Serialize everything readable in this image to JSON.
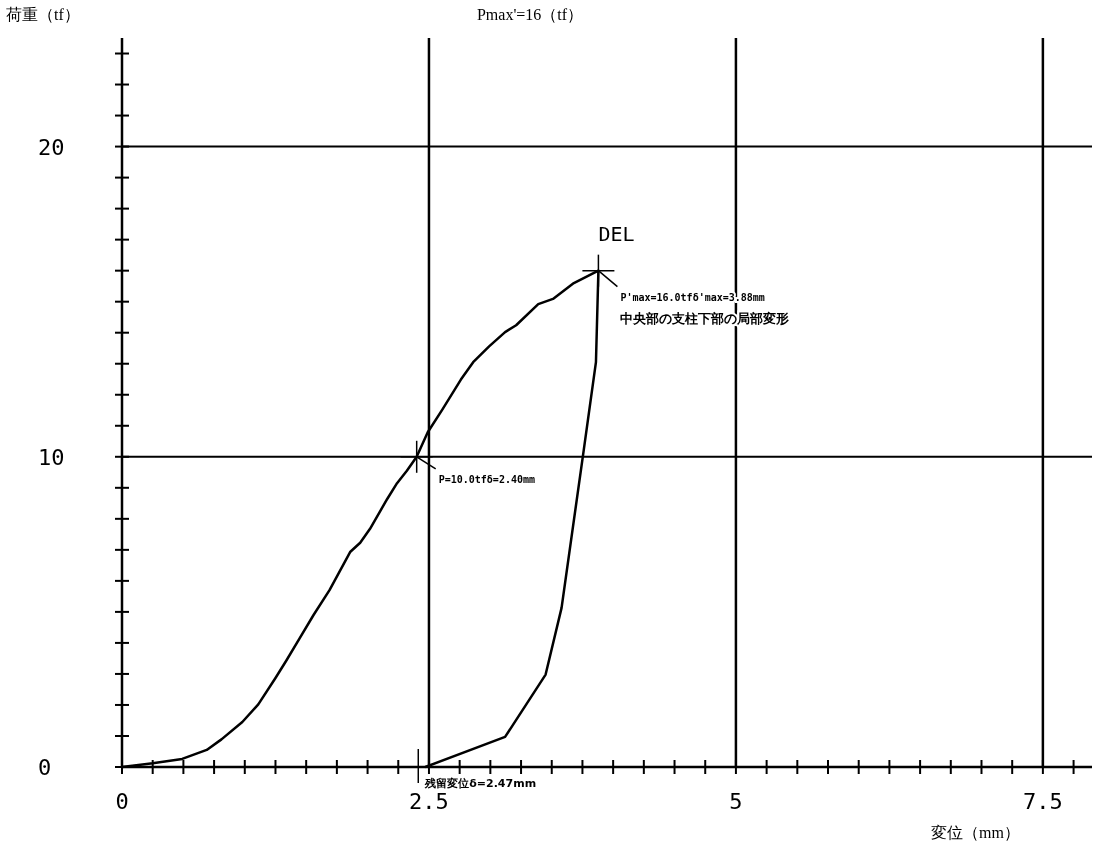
{
  "chart_data": {
    "type": "line",
    "title": "Pmax'=16（tf）",
    "xlabel": "変位（mm）",
    "ylabel": "荷重（tf）",
    "xlim": [
      0,
      7.9
    ],
    "ylim": [
      0,
      23.5
    ],
    "xticks": [
      0,
      {
        "value": 0.25,
        "label": null
      },
      {
        "value": 0.5,
        "label": null
      },
      {
        "value": 0.75,
        "label": null
      },
      {
        "value": 1,
        "label": null
      },
      {
        "value": 1.25,
        "label": null
      },
      {
        "value": 1.5,
        "label": null
      },
      {
        "value": 1.75,
        "label": null
      },
      {
        "value": 2,
        "label": null
      },
      {
        "value": 2.25,
        "label": null
      },
      2.5,
      {
        "value": 2.75,
        "label": null
      },
      {
        "value": 3,
        "label": null
      },
      {
        "value": 3.25,
        "label": null
      },
      {
        "value": 3.5,
        "label": null
      },
      {
        "value": 3.75,
        "label": null
      },
      {
        "value": 4,
        "label": null
      },
      {
        "value": 4.25,
        "label": null
      },
      {
        "value": 4.5,
        "label": null
      },
      {
        "value": 4.75,
        "label": null
      },
      5,
      {
        "value": 5.25,
        "label": null
      },
      {
        "value": 5.5,
        "label": null
      },
      {
        "value": 5.75,
        "label": null
      },
      {
        "value": 6,
        "label": null
      },
      {
        "value": 6.25,
        "label": null
      },
      {
        "value": 6.5,
        "label": null
      },
      {
        "value": 6.75,
        "label": null
      },
      {
        "value": 7,
        "label": null
      },
      {
        "value": 7.25,
        "label": null
      },
      7.5,
      {
        "value": 7.75,
        "label": null
      }
    ],
    "yticks": [
      0,
      {
        "value": 1,
        "label": null
      },
      {
        "value": 2,
        "label": null
      },
      {
        "value": 3,
        "label": null
      },
      {
        "value": 4,
        "label": null
      },
      {
        "value": 5,
        "label": null
      },
      {
        "value": 6,
        "label": null
      },
      {
        "value": 7,
        "label": null
      },
      {
        "value": 8,
        "label": null
      },
      {
        "value": 9,
        "label": null
      },
      10,
      {
        "value": 11,
        "label": null
      },
      {
        "value": 12,
        "label": null
      },
      {
        "value": 13,
        "label": null
      },
      {
        "value": 14,
        "label": null
      },
      {
        "value": 15,
        "label": null
      },
      {
        "value": 16,
        "label": null
      },
      {
        "value": 17,
        "label": null
      },
      {
        "value": 18,
        "label": null
      },
      {
        "value": 19,
        "label": null
      },
      20,
      {
        "value": 21,
        "label": null
      },
      {
        "value": 22,
        "label": null
      },
      {
        "value": 23,
        "label": null
      }
    ],
    "grid": true,
    "marker": "none",
    "line_style": "solid",
    "series": [
      {
        "color": "#000000",
        "x": [
          0,
          0.25,
          0.49,
          0.69,
          0.81,
          0.98,
          1.11,
          1.25,
          1.34,
          1.45,
          1.56,
          1.69,
          1.86,
          1.94,
          2.02,
          2.16,
          2.24,
          2.32,
          2.4,
          2.49,
          2.61,
          2.76,
          2.86,
          2.99,
          3.12,
          3.21,
          3.39,
          3.51,
          3.68,
          3.88,
          3.86,
          3.76,
          3.58,
          3.45,
          3.12,
          2.47
        ],
        "values": [
          0,
          0.12,
          0.26,
          0.55,
          0.89,
          1.45,
          2.02,
          2.87,
          3.44,
          4.17,
          4.9,
          5.7,
          6.94,
          7.23,
          7.68,
          8.64,
          9.15,
          9.55,
          10,
          10.79,
          11.53,
          12.49,
          13.05,
          13.56,
          14.02,
          14.24,
          14.92,
          15.09,
          15.6,
          16,
          13.05,
          10.2,
          5.13,
          2.98,
          0.97,
          0
        ]
      }
    ],
    "annotations": [
      {
        "text": "P'max=16.0tfδ'max=3.88mm",
        "x": 3.88,
        "y": 16
      },
      "中央部の支柱下部の局部変形",
      {
        "text": "DEL",
        "x": 3.88,
        "y": 16
      },
      {
        "text": "P=10.0tfδ=2.40mm",
        "x": 2.4,
        "y": 10
      },
      {
        "text": "残留変位δ=2.47mm",
        "x": 2.47,
        "y": 0
      }
    ]
  }
}
